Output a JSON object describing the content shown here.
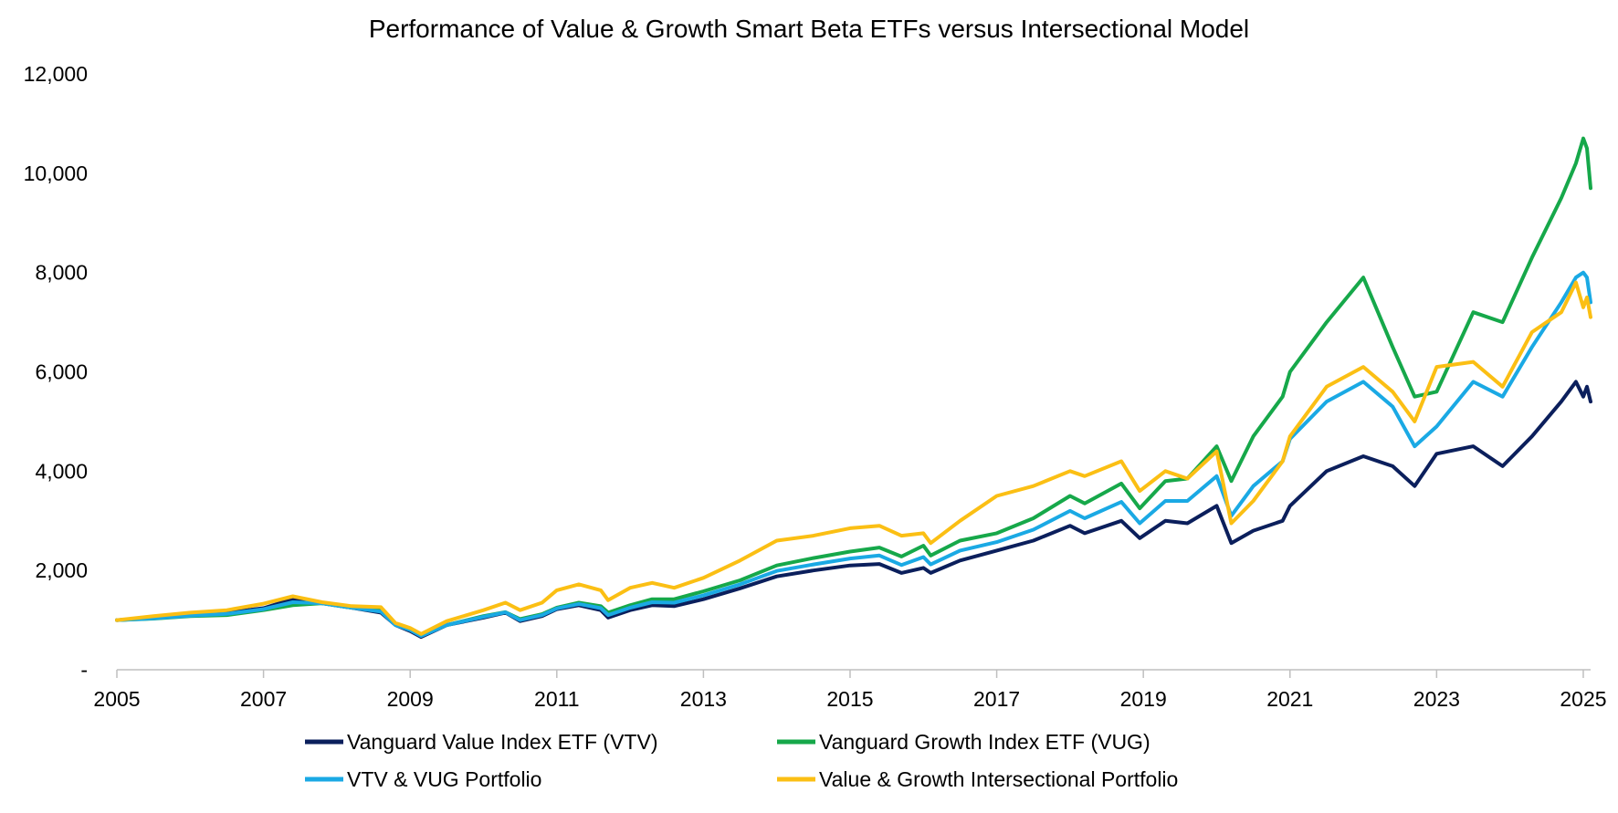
{
  "chart_data": {
    "type": "line",
    "title": "Performance of Value & Growth Smart Beta ETFs versus Intersectional Model",
    "xlabel": "",
    "ylabel": "",
    "xlim": [
      2005,
      2025.1
    ],
    "ylim": [
      0,
      12000
    ],
    "x_ticks": [
      "2005",
      "2007",
      "2009",
      "2011",
      "2013",
      "2015",
      "2017",
      "2019",
      "2021",
      "2023",
      "2025"
    ],
    "y_ticks": [
      "-",
      "2,000",
      "4,000",
      "6,000",
      "8,000",
      "10,000",
      "12,000"
    ],
    "grid": false,
    "legend_position": "bottom",
    "series": [
      {
        "name": "Vanguard Value Index ETF (VTV)",
        "color": "#0b1f5c",
        "points": [
          [
            2005,
            1000
          ],
          [
            2005.5,
            1040
          ],
          [
            2006,
            1100
          ],
          [
            2006.5,
            1150
          ],
          [
            2007,
            1240
          ],
          [
            2007.4,
            1420
          ],
          [
            2007.8,
            1340
          ],
          [
            2008.2,
            1250
          ],
          [
            2008.6,
            1150
          ],
          [
            2008.8,
            900
          ],
          [
            2009.0,
            780
          ],
          [
            2009.15,
            660
          ],
          [
            2009.5,
            900
          ],
          [
            2010,
            1050
          ],
          [
            2010.3,
            1150
          ],
          [
            2010.5,
            980
          ],
          [
            2010.8,
            1080
          ],
          [
            2011,
            1220
          ],
          [
            2011.3,
            1300
          ],
          [
            2011.6,
            1200
          ],
          [
            2011.7,
            1050
          ],
          [
            2012,
            1200
          ],
          [
            2012.3,
            1300
          ],
          [
            2012.6,
            1280
          ],
          [
            2013,
            1420
          ],
          [
            2013.5,
            1640
          ],
          [
            2014,
            1880
          ],
          [
            2014.5,
            2000
          ],
          [
            2015,
            2100
          ],
          [
            2015.4,
            2130
          ],
          [
            2015.7,
            1950
          ],
          [
            2016,
            2050
          ],
          [
            2016.1,
            1950
          ],
          [
            2016.5,
            2200
          ],
          [
            2017,
            2400
          ],
          [
            2017.5,
            2600
          ],
          [
            2018,
            2900
          ],
          [
            2018.2,
            2750
          ],
          [
            2018.7,
            3000
          ],
          [
            2018.95,
            2650
          ],
          [
            2019.3,
            3000
          ],
          [
            2019.6,
            2950
          ],
          [
            2020,
            3300
          ],
          [
            2020.2,
            2550
          ],
          [
            2020.5,
            2800
          ],
          [
            2020.9,
            3000
          ],
          [
            2021,
            3300
          ],
          [
            2021.5,
            4000
          ],
          [
            2022,
            4300
          ],
          [
            2022.4,
            4100
          ],
          [
            2022.7,
            3700
          ],
          [
            2023,
            4350
          ],
          [
            2023.5,
            4500
          ],
          [
            2023.9,
            4100
          ],
          [
            2024.3,
            4700
          ],
          [
            2024.7,
            5400
          ],
          [
            2024.9,
            5800
          ],
          [
            2025,
            5500
          ],
          [
            2025.05,
            5700
          ],
          [
            2025.1,
            5400
          ]
        ]
      },
      {
        "name": "Vanguard Growth Index ETF (VUG)",
        "color": "#16a84a",
        "points": [
          [
            2005,
            1000
          ],
          [
            2005.5,
            1030
          ],
          [
            2006,
            1080
          ],
          [
            2006.5,
            1100
          ],
          [
            2007,
            1200
          ],
          [
            2007.4,
            1300
          ],
          [
            2007.8,
            1340
          ],
          [
            2008.2,
            1250
          ],
          [
            2008.6,
            1200
          ],
          [
            2008.8,
            900
          ],
          [
            2009.0,
            820
          ],
          [
            2009.15,
            700
          ],
          [
            2009.5,
            900
          ],
          [
            2010,
            1080
          ],
          [
            2010.3,
            1160
          ],
          [
            2010.5,
            1020
          ],
          [
            2010.8,
            1120
          ],
          [
            2011,
            1250
          ],
          [
            2011.3,
            1350
          ],
          [
            2011.6,
            1280
          ],
          [
            2011.7,
            1150
          ],
          [
            2012,
            1300
          ],
          [
            2012.3,
            1420
          ],
          [
            2012.6,
            1420
          ],
          [
            2013,
            1580
          ],
          [
            2013.5,
            1800
          ],
          [
            2014,
            2100
          ],
          [
            2014.5,
            2250
          ],
          [
            2015,
            2380
          ],
          [
            2015.4,
            2460
          ],
          [
            2015.7,
            2280
          ],
          [
            2016,
            2500
          ],
          [
            2016.1,
            2300
          ],
          [
            2016.5,
            2600
          ],
          [
            2017,
            2750
          ],
          [
            2017.5,
            3050
          ],
          [
            2018,
            3500
          ],
          [
            2018.2,
            3350
          ],
          [
            2018.7,
            3750
          ],
          [
            2018.95,
            3250
          ],
          [
            2019.3,
            3800
          ],
          [
            2019.6,
            3850
          ],
          [
            2020,
            4500
          ],
          [
            2020.2,
            3800
          ],
          [
            2020.5,
            4700
          ],
          [
            2020.9,
            5500
          ],
          [
            2021,
            6000
          ],
          [
            2021.5,
            7000
          ],
          [
            2022,
            7900
          ],
          [
            2022.4,
            6500
          ],
          [
            2022.7,
            5500
          ],
          [
            2023,
            5600
          ],
          [
            2023.5,
            7200
          ],
          [
            2023.9,
            7000
          ],
          [
            2024.3,
            8300
          ],
          [
            2024.7,
            9500
          ],
          [
            2024.9,
            10200
          ],
          [
            2025,
            10700
          ],
          [
            2025.05,
            10500
          ],
          [
            2025.1,
            9700
          ]
        ]
      },
      {
        "name": "VTV & VUG Portfolio",
        "color": "#1aa9e4",
        "points": [
          [
            2005,
            1000
          ],
          [
            2005.5,
            1035
          ],
          [
            2006,
            1090
          ],
          [
            2006.5,
            1125
          ],
          [
            2007,
            1220
          ],
          [
            2007.4,
            1360
          ],
          [
            2007.8,
            1340
          ],
          [
            2008.2,
            1250
          ],
          [
            2008.6,
            1170
          ],
          [
            2008.8,
            900
          ],
          [
            2009.0,
            800
          ],
          [
            2009.15,
            680
          ],
          [
            2009.5,
            900
          ],
          [
            2010,
            1065
          ],
          [
            2010.3,
            1155
          ],
          [
            2010.5,
            1000
          ],
          [
            2010.8,
            1100
          ],
          [
            2011,
            1235
          ],
          [
            2011.3,
            1325
          ],
          [
            2011.6,
            1240
          ],
          [
            2011.7,
            1100
          ],
          [
            2012,
            1250
          ],
          [
            2012.3,
            1360
          ],
          [
            2012.6,
            1350
          ],
          [
            2013,
            1500
          ],
          [
            2013.5,
            1720
          ],
          [
            2014,
            1990
          ],
          [
            2014.5,
            2120
          ],
          [
            2015,
            2240
          ],
          [
            2015.4,
            2300
          ],
          [
            2015.7,
            2110
          ],
          [
            2016,
            2270
          ],
          [
            2016.1,
            2120
          ],
          [
            2016.5,
            2400
          ],
          [
            2017,
            2570
          ],
          [
            2017.5,
            2820
          ],
          [
            2018,
            3200
          ],
          [
            2018.2,
            3050
          ],
          [
            2018.7,
            3380
          ],
          [
            2018.95,
            2950
          ],
          [
            2019.3,
            3400
          ],
          [
            2019.6,
            3400
          ],
          [
            2020,
            3900
          ],
          [
            2020.2,
            3100
          ],
          [
            2020.5,
            3700
          ],
          [
            2020.9,
            4200
          ],
          [
            2021,
            4650
          ],
          [
            2021.5,
            5400
          ],
          [
            2022,
            5800
          ],
          [
            2022.4,
            5300
          ],
          [
            2022.7,
            4500
          ],
          [
            2023,
            4900
          ],
          [
            2023.5,
            5800
          ],
          [
            2023.9,
            5500
          ],
          [
            2024.3,
            6500
          ],
          [
            2024.7,
            7400
          ],
          [
            2024.9,
            7900
          ],
          [
            2025,
            8000
          ],
          [
            2025.05,
            7900
          ],
          [
            2025.1,
            7400
          ]
        ]
      },
      {
        "name": "Value & Growth Intersectional Portfolio",
        "color": "#fbbf14",
        "points": [
          [
            2005,
            1000
          ],
          [
            2005.5,
            1080
          ],
          [
            2006,
            1150
          ],
          [
            2006.5,
            1200
          ],
          [
            2007,
            1330
          ],
          [
            2007.4,
            1480
          ],
          [
            2007.8,
            1360
          ],
          [
            2008.2,
            1280
          ],
          [
            2008.6,
            1260
          ],
          [
            2008.8,
            940
          ],
          [
            2009.0,
            840
          ],
          [
            2009.15,
            720
          ],
          [
            2009.5,
            980
          ],
          [
            2010,
            1200
          ],
          [
            2010.3,
            1350
          ],
          [
            2010.5,
            1200
          ],
          [
            2010.8,
            1350
          ],
          [
            2011,
            1600
          ],
          [
            2011.3,
            1720
          ],
          [
            2011.6,
            1600
          ],
          [
            2011.7,
            1400
          ],
          [
            2012,
            1650
          ],
          [
            2012.3,
            1750
          ],
          [
            2012.6,
            1650
          ],
          [
            2013,
            1850
          ],
          [
            2013.5,
            2200
          ],
          [
            2014,
            2600
          ],
          [
            2014.5,
            2700
          ],
          [
            2015,
            2850
          ],
          [
            2015.4,
            2900
          ],
          [
            2015.7,
            2700
          ],
          [
            2016,
            2750
          ],
          [
            2016.1,
            2550
          ],
          [
            2016.5,
            3000
          ],
          [
            2017,
            3500
          ],
          [
            2017.5,
            3700
          ],
          [
            2018,
            4000
          ],
          [
            2018.2,
            3900
          ],
          [
            2018.7,
            4200
          ],
          [
            2018.95,
            3600
          ],
          [
            2019.3,
            4000
          ],
          [
            2019.6,
            3850
          ],
          [
            2020,
            4400
          ],
          [
            2020.2,
            2950
          ],
          [
            2020.5,
            3400
          ],
          [
            2020.9,
            4200
          ],
          [
            2021,
            4700
          ],
          [
            2021.5,
            5700
          ],
          [
            2022,
            6100
          ],
          [
            2022.4,
            5600
          ],
          [
            2022.7,
            5000
          ],
          [
            2023,
            6100
          ],
          [
            2023.5,
            6200
          ],
          [
            2023.9,
            5700
          ],
          [
            2024.3,
            6800
          ],
          [
            2024.7,
            7200
          ],
          [
            2024.9,
            7800
          ],
          [
            2025,
            7300
          ],
          [
            2025.05,
            7500
          ],
          [
            2025.1,
            7100
          ]
        ]
      }
    ]
  }
}
